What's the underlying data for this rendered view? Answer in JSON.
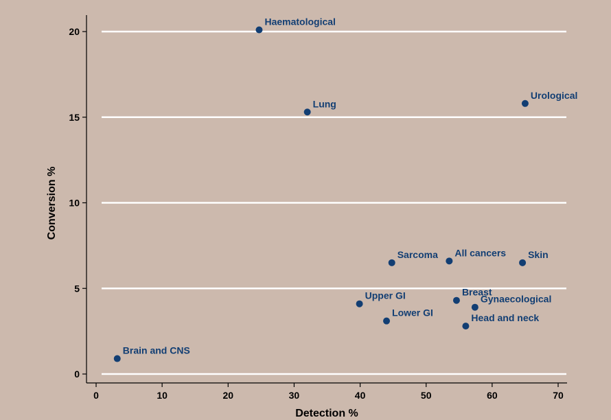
{
  "chart_data": {
    "type": "scatter",
    "title": "",
    "xlabel": "Detection %",
    "ylabel": "Conversion %",
    "xlim": [
      -1,
      71
    ],
    "ylim": [
      -0.5,
      21
    ],
    "xticks": [
      0,
      10,
      20,
      30,
      40,
      50,
      60,
      70
    ],
    "yticks": [
      0,
      5,
      10,
      15,
      20
    ],
    "grid": "horizontal",
    "colors": {
      "background": "#ccb9ad",
      "point": "#123e73",
      "grid": "#ffffff"
    },
    "points": [
      {
        "label": "Haematological",
        "x": 24.7,
        "y": 20.1
      },
      {
        "label": "Lung",
        "x": 32.0,
        "y": 15.3
      },
      {
        "label": "Urological",
        "x": 65.0,
        "y": 15.8
      },
      {
        "label": "Sarcoma",
        "x": 44.8,
        "y": 6.5
      },
      {
        "label": "All cancers",
        "x": 53.5,
        "y": 6.6
      },
      {
        "label": "Skin",
        "x": 64.6,
        "y": 6.5
      },
      {
        "label": "Breast",
        "x": 54.6,
        "y": 4.3
      },
      {
        "label": "Gynaecological",
        "x": 57.4,
        "y": 3.9
      },
      {
        "label": "Upper GI",
        "x": 39.9,
        "y": 4.1
      },
      {
        "label": "Lower GI",
        "x": 44.0,
        "y": 3.1
      },
      {
        "label": "Head and neck",
        "x": 56.0,
        "y": 2.8
      },
      {
        "label": "Brain and CNS",
        "x": 3.2,
        "y": 0.9
      }
    ]
  }
}
